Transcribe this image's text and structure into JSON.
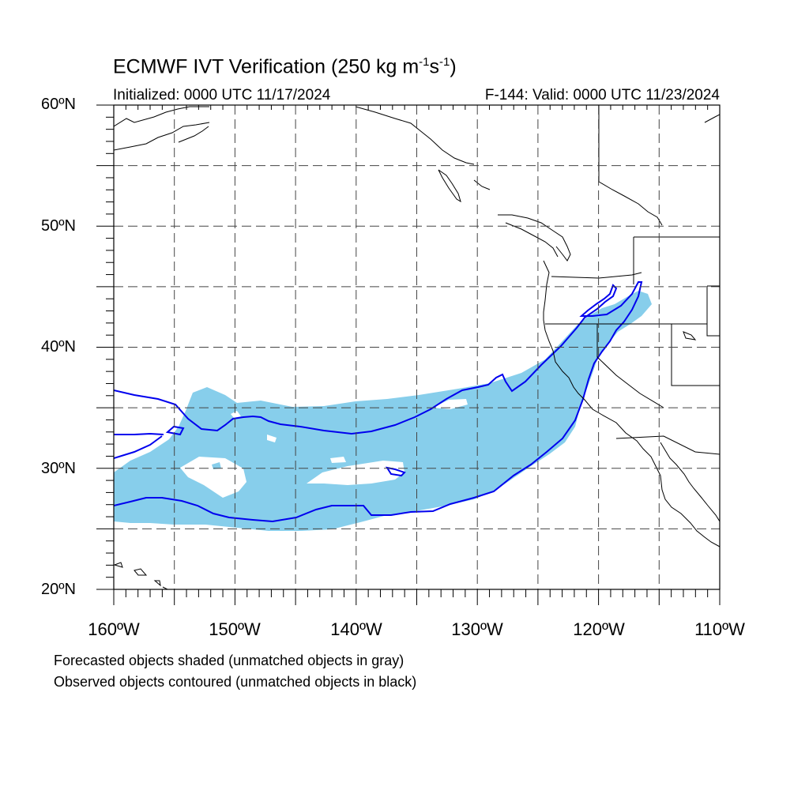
{
  "title": {
    "main": "ECMWF IVT Verification (250 kg m",
    "exp1": "-1",
    "mid": "s",
    "exp2": "-1",
    "close": ")"
  },
  "subtitle": {
    "initialized": "Initialized: 0000 UTC 11/17/2024",
    "valid": "F-144: Valid: 0000 UTC 11/23/2024"
  },
  "axes": {
    "lat_labels": [
      "60ºN",
      "50ºN",
      "40ºN",
      "30ºN",
      "20ºN"
    ],
    "lon_labels": [
      "160ºW",
      "150ºW",
      "140ºW",
      "130ºW",
      "120ºW",
      "110ºW"
    ],
    "lat_range": [
      20,
      60
    ],
    "lon_range": [
      -160,
      -110
    ],
    "gridlines": "dashed, every 5 degrees"
  },
  "legend": {
    "line1": "Forecasted objects shaded (unmatched objects in gray)",
    "line2": "Observed objects contoured (unmatched objects in black)"
  },
  "colors": {
    "forecast_fill": "#87ceeb",
    "observed_contour": "#0000ee",
    "coastline": "#000000",
    "grid": "#555555"
  }
}
